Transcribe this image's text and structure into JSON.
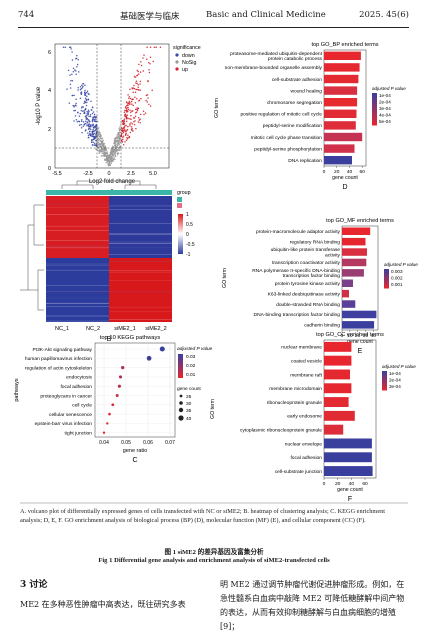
{
  "header": {
    "page": "744",
    "journal_cn": "基础医学与临床",
    "journal_en": "Basic and Clinical Medicine",
    "issue": "2025. 45(6)"
  },
  "figure": {
    "volcano": {
      "panel": "A",
      "xlabel": "Log2 fold change",
      "ylabel": "-log10 P value",
      "xticks": [
        "-5.5",
        "-2.5",
        "0",
        "2.5",
        "5.0"
      ],
      "yticks": [
        "0",
        "2",
        "4",
        "6"
      ],
      "legend_title": "significance",
      "legend": [
        {
          "label": "down",
          "color": "#3b4aa6"
        },
        {
          "label": "NoSig",
          "color": "#9a9a9a"
        },
        {
          "label": "up",
          "color": "#d3202a"
        }
      ]
    },
    "heatmap": {
      "panel": "B",
      "samples": [
        "NC_1",
        "NC_2",
        "siME2_1",
        "siME2_2"
      ],
      "legend_title": "group",
      "scale_ticks": [
        "1",
        "0.5",
        "0",
        "-0.5",
        "-1"
      ],
      "group_colors": [
        "#3ab6a8",
        "#e0708a"
      ]
    },
    "kegg": {
      "panel": "C",
      "title": "top 10 KEGG pathways",
      "ylabel": "pathways",
      "xlabel": "gene ratio",
      "xticks": [
        "0.04",
        "0.05",
        "0.06",
        "0.07"
      ],
      "legend_p_title": "adjusted P value",
      "legend_p_ticks": [
        "0.03",
        "0.02",
        "0.01"
      ],
      "legend_count_title": "gene count",
      "legend_count_ticks": [
        "25",
        "30",
        "35",
        "40"
      ],
      "terms": [
        {
          "name": "PI3K-Akt signaling pathway",
          "ratio": 0.0665,
          "count": 40,
          "padj": 0.005
        },
        {
          "name": "human papillomavirus infection",
          "ratio": 0.0605,
          "count": 38,
          "padj": 0.006
        },
        {
          "name": "regulation of actin cytoskeleton",
          "ratio": 0.0485,
          "count": 30,
          "padj": 0.022
        },
        {
          "name": "endocytosis",
          "ratio": 0.0475,
          "count": 29,
          "padj": 0.024
        },
        {
          "name": "focal adhesion",
          "ratio": 0.047,
          "count": 29,
          "padj": 0.025
        },
        {
          "name": "proteoglycans in cancer",
          "ratio": 0.046,
          "count": 28,
          "padj": 0.028
        },
        {
          "name": "cell cycle",
          "ratio": 0.044,
          "count": 27,
          "padj": 0.029
        },
        {
          "name": "cellular senescence",
          "ratio": 0.0425,
          "count": 26,
          "padj": 0.03
        },
        {
          "name": "epstein-barr virus infection",
          "ratio": 0.0415,
          "count": 25,
          "padj": 0.031
        },
        {
          "name": "tight junction",
          "ratio": 0.04,
          "count": 25,
          "padj": 0.032
        }
      ]
    },
    "go_bp": {
      "panel": "D",
      "title": "top GO_BP enriched terms",
      "ylabel": "GO term",
      "xlabel": "gene count",
      "xticks": [
        "0",
        "20",
        "40",
        "60"
      ],
      "legend_title": "adjusted P value",
      "legend_ticks": [
        "1e-04",
        "2e-04",
        "3e-04",
        "4e-04",
        "5e-04"
      ],
      "terms": [
        {
          "name": "proteasome-mediated ubiquitin-dependent protein catabolic process",
          "count": 58,
          "color": "#e8262e"
        },
        {
          "name": "non-membrane-bounded organelle assembly",
          "count": 56,
          "color": "#e52830"
        },
        {
          "name": "cell-substrate adhesion",
          "count": 54,
          "color": "#e32a33"
        },
        {
          "name": "wound healing",
          "count": 52,
          "color": "#d83040"
        },
        {
          "name": "chromosome segregation",
          "count": 52,
          "color": "#e62a2e"
        },
        {
          "name": "positive regulation of mitotic cell cycle",
          "count": 51,
          "color": "#e02b35"
        },
        {
          "name": "peptidyl-serine modification",
          "count": 50,
          "color": "#dd2c3a"
        },
        {
          "name": "mitotic cell cycle phase transition",
          "count": 60,
          "color": "#c43352"
        },
        {
          "name": "peptidyl-serine phosphorylation",
          "count": 48,
          "color": "#d0304a"
        },
        {
          "name": "DNA replication",
          "count": 44,
          "color": "#3a3f9e"
        }
      ]
    },
    "go_mf": {
      "panel": "E",
      "title": "top GO_MF enriched terms",
      "ylabel": "GO term",
      "xlabel": "gene count",
      "xticks": [
        "0",
        "10",
        "20",
        "30",
        "40"
      ],
      "legend_title": "adjusted P value",
      "legend_ticks": [
        "0.003",
        "0.002",
        "0.001"
      ],
      "terms": [
        {
          "name": "protein-macromolecule adaptor activity",
          "count": 36,
          "color": "#e8262e"
        },
        {
          "name": "regulatory RNA binding",
          "count": 30,
          "color": "#e52830"
        },
        {
          "name": "ubiquitin-like protein transferase activity",
          "count": 32,
          "color": "#d83040"
        },
        {
          "name": "transcription coactivator activity",
          "count": 31,
          "color": "#b53860"
        },
        {
          "name": "RNA polymerase II-specific DNA-binding transcription factor binding",
          "count": 28,
          "color": "#9a3d72"
        },
        {
          "name": "protein tyrosine kinase activity",
          "count": 14,
          "color": "#7a4088"
        },
        {
          "name": "K63-linked deubiquitinase activity",
          "count": 9,
          "color": "#cf2f48"
        },
        {
          "name": "double-stranded RNA binding",
          "count": 17,
          "color": "#5a3f98"
        },
        {
          "name": "DNA-binding transcription factor binding",
          "count": 44,
          "color": "#3f3fa0"
        },
        {
          "name": "cadherin binding",
          "count": 41,
          "color": "#3a3f9e"
        }
      ]
    },
    "go_cc": {
      "panel": "F",
      "title": "top GO_CC enriched terms",
      "ylabel": "GO term",
      "xlabel": "gene count",
      "xticks": [
        "0",
        "20",
        "40",
        "60"
      ],
      "legend_title": "adjusted P value",
      "legend_ticks": [
        "1e-04",
        "2e-04",
        "3e-04"
      ],
      "terms": [
        {
          "name": "nuclear membrane",
          "count": 40,
          "color": "#e8262e"
        },
        {
          "name": "coated vesicle",
          "count": 40,
          "color": "#e8262e"
        },
        {
          "name": "membrane raft",
          "count": 38,
          "color": "#e52830"
        },
        {
          "name": "membrane microdomain",
          "count": 40,
          "color": "#e52830"
        },
        {
          "name": "ribonucleoprotein granule",
          "count": 36,
          "color": "#e32a33"
        },
        {
          "name": "early endosome",
          "count": 45,
          "color": "#e02b35"
        },
        {
          "name": "cytoplasmic ribonucleoprotein granule",
          "count": 28,
          "color": "#dd2c3a"
        },
        {
          "name": "nuclear envelope",
          "count": 70,
          "color": "#3a3f9e"
        },
        {
          "name": "focal adhesion",
          "count": 70,
          "color": "#3a3f9e"
        },
        {
          "name": "cell-substrate junction",
          "count": 71,
          "color": "#3a3f9e"
        }
      ]
    }
  },
  "caption": {
    "en": "A. volcano plot of differentially expressed genes of cells transfected with NC or siME2; B. heatmap of clustering analysis; C. KEGG enrichment analysis; D, E, F. GO enrichment analysis of biological process (BP) (D), molecular function (MF) (E), and cellular component (CC) (F).",
    "fig_cn": "图 1   siME2 的差异基因及富集分析",
    "fig_en": "Fig 1   Differential gene analysis and enrichment analysis of siME2-transfected cells"
  },
  "body": {
    "section": "3   讨论",
    "left_para": "ME2 在多种恶性肿瘤中高表达，既往研究多表",
    "right_para": "明 ME2 通过调节肿瘤代谢促进肿瘤形成。例如，在急性髓系白血病中敲降 ME2 可降低糖酵解中间产物的表达，从而有效抑制糖酵解与白血病细胞的增殖[9]；"
  }
}
